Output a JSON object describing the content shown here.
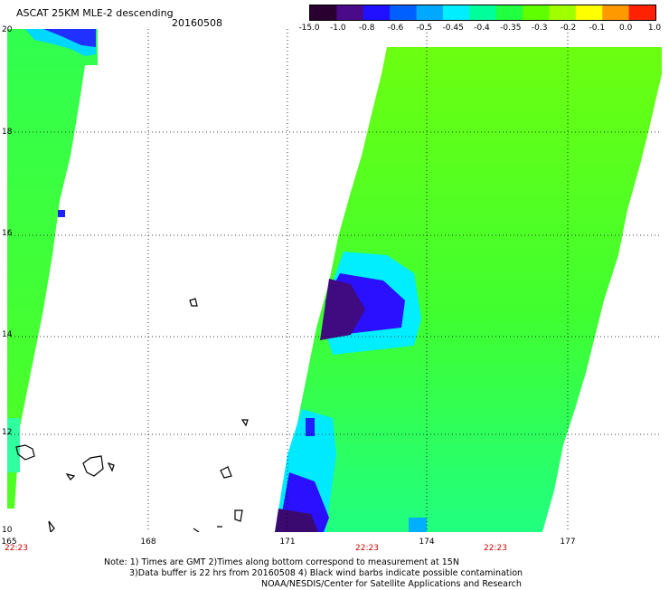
{
  "title": "ASCAT 25KM MLE-2 descending",
  "date": "20160508",
  "colorbar": {
    "labels": [
      "-15.0",
      "-1.0",
      "-0.8",
      "-0.6",
      "-0.5",
      "-0.45",
      "-0.4",
      "-0.35",
      "-0.3",
      "-0.2",
      "-0.1",
      "0.0",
      "1.0"
    ],
    "colors": [
      "#2a0030",
      "#4a0a8a",
      "#2010ff",
      "#0060ff",
      "#00a8ff",
      "#00eeff",
      "#00ff9a",
      "#20ff40",
      "#60ff00",
      "#a0ff00",
      "#ffff00",
      "#ff9900",
      "#ff2200"
    ]
  },
  "axes": {
    "y_labels": [
      "20",
      "18",
      "16",
      "14",
      "12",
      "10"
    ],
    "x_labels": [
      "165",
      "168",
      "171",
      "174",
      "177"
    ],
    "time_labels": [
      "22:23",
      "22:23",
      "22:23"
    ]
  },
  "notes": {
    "line1": "Note: 1) Times are GMT 2)Times along bottom correspond to measurement at 15N",
    "line2": "3)Data buffer is 22 hrs from 20160508 4) Black wind barbs indicate possible contamination",
    "line3": "NOAA/NESDIS/Center for Satellite Applications and Research"
  }
}
